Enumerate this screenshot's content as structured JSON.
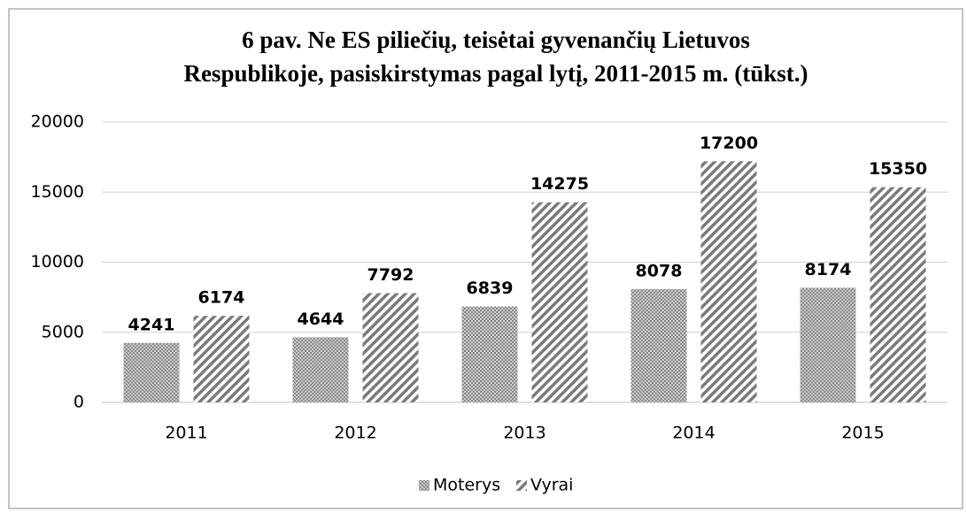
{
  "chart_data": {
    "type": "bar",
    "title": [
      "6 pav. Ne ES piliečių, teisėtai gyvenančių Lietuvos",
      "Respublikoje, pasiskirstymas pagal lytį, 2011-2015 m. (tūkst.)"
    ],
    "categories": [
      "2011",
      "2012",
      "2013",
      "2014",
      "2015"
    ],
    "series": [
      {
        "name": "Moterys",
        "color": "#8c8c8c",
        "pattern": "dots",
        "values": [
          4241,
          4644,
          6839,
          8078,
          8174
        ]
      },
      {
        "name": "Vyrai",
        "color": "#7a7a7a",
        "pattern": "stripes",
        "values": [
          6174,
          7792,
          14275,
          17200,
          15350
        ]
      }
    ],
    "ylim": [
      0,
      20000
    ],
    "yticks": [
      0,
      5000,
      10000,
      15000,
      20000
    ],
    "grid": true,
    "legend": "bottom"
  }
}
